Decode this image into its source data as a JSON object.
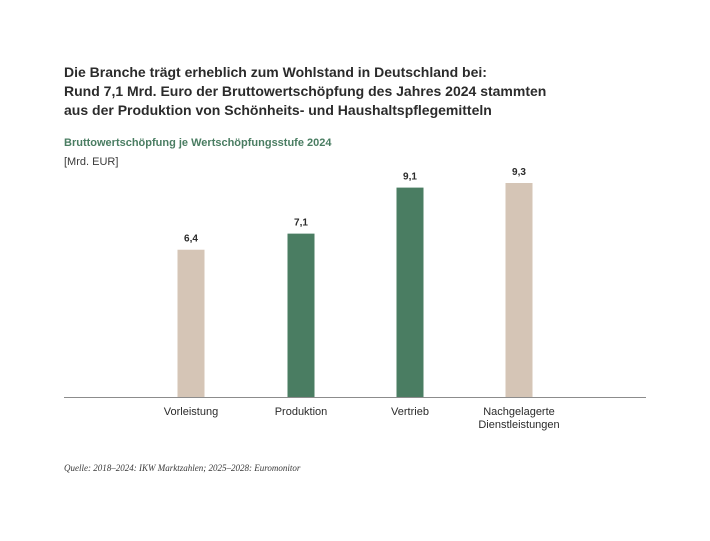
{
  "headline": [
    "Die Branche trägt erheblich zum Wohlstand in Deutschland bei:",
    "Rund 7,1 Mrd. Euro der Bruttowertschöpfung des Jahres 2024 stammten",
    "aus der Produktion von Schönheits- und Haushaltspflegemitteln"
  ],
  "source": "Quelle: 2018–2024: IKW Marktzahlen; 2025–2028: Euromonitor",
  "chart_data": {
    "type": "bar",
    "title": "Bruttowertschöpfung je Wertschöpfungsstufe 2024",
    "unit": "[Mrd. EUR]",
    "categories": [
      [
        "Vorleistung"
      ],
      [
        "Produktion"
      ],
      [
        "Vertrieb"
      ],
      [
        "Nachgelagerte",
        "Dienstleistungen"
      ]
    ],
    "values": [
      6.4,
      7.1,
      9.1,
      9.3
    ],
    "value_labels": [
      "6,4",
      "7,1",
      "9,1",
      "9,3"
    ],
    "colors": [
      "#d5c5b6",
      "#4a7d62",
      "#4a7d62",
      "#d5c5b6"
    ],
    "axis_color": "#8c8c8c",
    "ylim": [
      0,
      9.3
    ]
  }
}
